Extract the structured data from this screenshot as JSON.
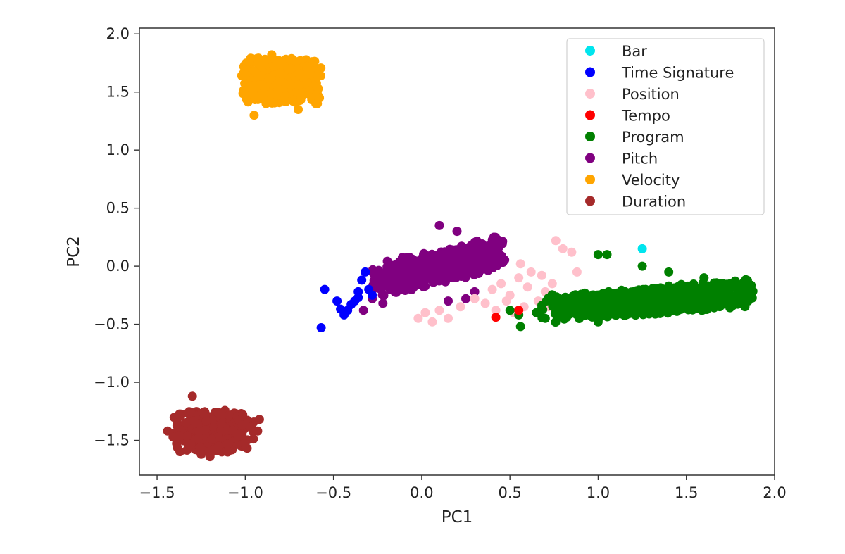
{
  "chart_data": {
    "type": "scatter",
    "xlabel": "PC1",
    "ylabel": "PC2",
    "xlim": [
      -1.6,
      2.0
    ],
    "ylim": [
      -1.8,
      2.05
    ],
    "xticks": [
      -1.5,
      -1.0,
      -0.5,
      0.0,
      0.5,
      1.0,
      1.5,
      2.0
    ],
    "xtick_labels": [
      "−1.5",
      "−1.0",
      "−0.5",
      "0.0",
      "0.5",
      "1.0",
      "1.5",
      "2.0"
    ],
    "yticks": [
      2.0,
      1.5,
      1.0,
      0.5,
      0.0,
      -0.5,
      -1.0,
      -1.5
    ],
    "ytick_labels": [
      "2.0",
      "1.5",
      "1.0",
      "0.5",
      "0.0",
      "−0.5",
      "−1.0",
      "−1.5"
    ],
    "grid": false,
    "legend_position": "top-right",
    "series": [
      {
        "name": "Bar",
        "color": "#00e5ee",
        "points": [
          [
            1.25,
            0.15
          ]
        ]
      },
      {
        "name": "Time Signature",
        "color": "#0000ff",
        "points": [
          [
            -0.57,
            -0.53
          ],
          [
            -0.55,
            -0.2
          ],
          [
            -0.48,
            -0.3
          ],
          [
            -0.46,
            -0.37
          ],
          [
            -0.44,
            -0.42
          ],
          [
            -0.42,
            -0.38
          ],
          [
            -0.38,
            -0.3
          ],
          [
            -0.36,
            -0.22
          ],
          [
            -0.34,
            -0.12
          ],
          [
            -0.32,
            -0.05
          ],
          [
            -0.3,
            -0.2
          ],
          [
            -0.28,
            -0.25
          ],
          [
            -0.36,
            -0.27
          ],
          [
            -0.4,
            -0.33
          ]
        ]
      },
      {
        "name": "Position",
        "color": "#ffc0cb",
        "points": [
          [
            -0.02,
            -0.45
          ],
          [
            0.02,
            -0.4
          ],
          [
            0.06,
            -0.48
          ],
          [
            0.1,
            -0.38
          ],
          [
            0.15,
            -0.45
          ],
          [
            0.22,
            -0.35
          ],
          [
            0.3,
            -0.28
          ],
          [
            0.36,
            -0.32
          ],
          [
            0.4,
            -0.2
          ],
          [
            0.45,
            -0.15
          ],
          [
            0.5,
            -0.25
          ],
          [
            0.55,
            -0.1
          ],
          [
            0.6,
            -0.18
          ],
          [
            0.62,
            -0.05
          ],
          [
            0.66,
            -0.3
          ],
          [
            0.7,
            -0.22
          ],
          [
            0.74,
            -0.15
          ],
          [
            0.76,
            0.22
          ],
          [
            0.8,
            0.15
          ],
          [
            0.85,
            0.12
          ],
          [
            0.58,
            -0.35
          ],
          [
            0.52,
            -0.4
          ],
          [
            0.48,
            -0.3
          ],
          [
            0.42,
            -0.38
          ],
          [
            0.68,
            -0.08
          ],
          [
            0.72,
            -0.35
          ],
          [
            0.88,
            -0.05
          ],
          [
            0.56,
            0.02
          ]
        ]
      },
      {
        "name": "Tempo",
        "color": "#ff0000",
        "points": [
          [
            0.42,
            -0.44
          ],
          [
            0.55,
            -0.38
          ]
        ]
      },
      {
        "name": "Program",
        "color": "#008000",
        "cloud": {
          "cx": 1.28,
          "cy": -0.3,
          "rx": 0.6,
          "ry": 0.12,
          "n": 900,
          "seed": 11,
          "tilt": 0.12
        },
        "points": [
          [
            0.56,
            -0.52
          ],
          [
            0.5,
            -0.38
          ],
          [
            0.55,
            -0.42
          ],
          [
            1.0,
            0.1
          ],
          [
            1.05,
            0.1
          ],
          [
            1.25,
            0.0
          ],
          [
            1.4,
            -0.05
          ],
          [
            1.6,
            -0.1
          ],
          [
            1.75,
            -0.15
          ],
          [
            1.82,
            -0.18
          ],
          [
            1.86,
            -0.22
          ],
          [
            1.85,
            -0.3
          ],
          [
            1.8,
            -0.32
          ],
          [
            1.0,
            -0.48
          ],
          [
            0.7,
            -0.45
          ],
          [
            0.65,
            -0.4
          ]
        ]
      },
      {
        "name": "Pitch",
        "color": "#800080",
        "cloud": {
          "cx": 0.1,
          "cy": 0.0,
          "rx": 0.38,
          "ry": 0.15,
          "n": 650,
          "seed": 23,
          "tilt": 0.33
        },
        "points": [
          [
            -0.33,
            -0.38
          ],
          [
            -0.28,
            -0.28
          ],
          [
            -0.22,
            -0.32
          ],
          [
            -0.18,
            -0.2
          ],
          [
            -0.12,
            -0.1
          ],
          [
            0.1,
            0.35
          ],
          [
            0.2,
            0.3
          ],
          [
            0.3,
            0.2
          ],
          [
            0.4,
            0.1
          ],
          [
            0.45,
            0.03
          ],
          [
            0.3,
            -0.22
          ],
          [
            0.25,
            -0.28
          ],
          [
            0.15,
            -0.3
          ]
        ]
      },
      {
        "name": "Velocity",
        "color": "#ffa500",
        "cloud": {
          "cx": -0.8,
          "cy": 1.6,
          "rx": 0.23,
          "ry": 0.2,
          "n": 500,
          "seed": 37,
          "tilt": 0.0
        },
        "points": [
          [
            -0.95,
            1.3
          ],
          [
            -0.6,
            1.4
          ],
          [
            -0.58,
            1.45
          ],
          [
            -0.7,
            1.35
          ],
          [
            -0.85,
            1.82
          ],
          [
            -0.65,
            1.72
          ]
        ]
      },
      {
        "name": "Duration",
        "color": "#a52a2a",
        "cloud": {
          "cx": -1.18,
          "cy": -1.42,
          "rx": 0.23,
          "ry": 0.18,
          "n": 500,
          "seed": 53,
          "tilt": 0.0
        },
        "points": [
          [
            -1.44,
            -1.42
          ],
          [
            -1.3,
            -1.12
          ],
          [
            -1.25,
            -1.62
          ],
          [
            -1.2,
            -1.64
          ],
          [
            -0.92,
            -1.32
          ],
          [
            -0.93,
            -1.42
          ],
          [
            -1.1,
            -1.6
          ]
        ]
      }
    ]
  }
}
